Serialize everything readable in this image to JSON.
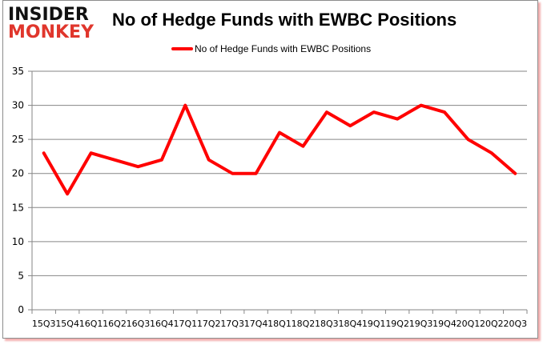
{
  "logo": {
    "line1": "INSIDER",
    "line2": "MONKEY"
  },
  "chart_data": {
    "type": "line",
    "title": "No of Hedge Funds with EWBC Positions",
    "xlabel": "",
    "ylabel": "",
    "categories": [
      "15Q3",
      "15Q4",
      "16Q1",
      "16Q2",
      "16Q3",
      "16Q4",
      "17Q1",
      "17Q2",
      "17Q3",
      "17Q4",
      "18Q1",
      "18Q2",
      "18Q3",
      "18Q4",
      "19Q1",
      "19Q2",
      "19Q3",
      "19Q4",
      "20Q1",
      "20Q2",
      "20Q3"
    ],
    "series": [
      {
        "name": "No of Hedge Funds with EWBC Positions",
        "color": "#ff0000",
        "values": [
          23,
          17,
          23,
          22,
          21,
          22,
          30,
          22,
          20,
          20,
          26,
          24,
          29,
          27,
          29,
          28,
          30,
          29,
          25,
          23,
          20
        ]
      }
    ],
    "ylim": [
      0,
      35
    ],
    "yticks": [
      0,
      5,
      10,
      15,
      20,
      25,
      30,
      35
    ],
    "grid": true,
    "legend_position": "top"
  }
}
